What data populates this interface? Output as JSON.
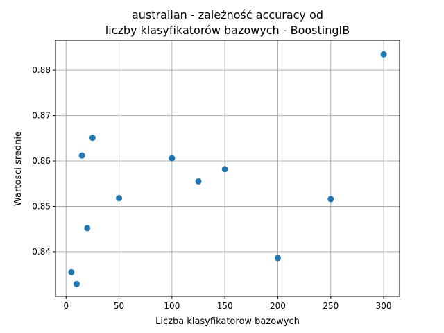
{
  "chart_data": {
    "type": "scatter",
    "title_lines": [
      "australian - zależność accuracy od",
      "liczby klasyfikatorów bazowych - BoostingIB"
    ],
    "xlabel": "Liczba klasyfikatorow bazowych",
    "ylabel": "Wartosci srednie",
    "xlim": [
      -10,
      315
    ],
    "ylim": [
      0.8302,
      0.8866
    ],
    "xticks": [
      0,
      50,
      100,
      150,
      200,
      250,
      300
    ],
    "yticks": [
      0.84,
      0.85,
      0.86,
      0.87,
      0.88
    ],
    "ytick_labels": [
      "0.84",
      "0.85",
      "0.86",
      "0.87",
      "0.88"
    ],
    "grid": true,
    "marker_color": "#1f77b4",
    "points": [
      {
        "x": 5,
        "y": 0.8355
      },
      {
        "x": 10,
        "y": 0.8329
      },
      {
        "x": 15,
        "y": 0.8612
      },
      {
        "x": 20,
        "y": 0.8452
      },
      {
        "x": 25,
        "y": 0.8651
      },
      {
        "x": 50,
        "y": 0.8518
      },
      {
        "x": 100,
        "y": 0.8606
      },
      {
        "x": 125,
        "y": 0.8555
      },
      {
        "x": 150,
        "y": 0.8582
      },
      {
        "x": 200,
        "y": 0.8386
      },
      {
        "x": 250,
        "y": 0.8516
      },
      {
        "x": 300,
        "y": 0.8835
      }
    ]
  }
}
